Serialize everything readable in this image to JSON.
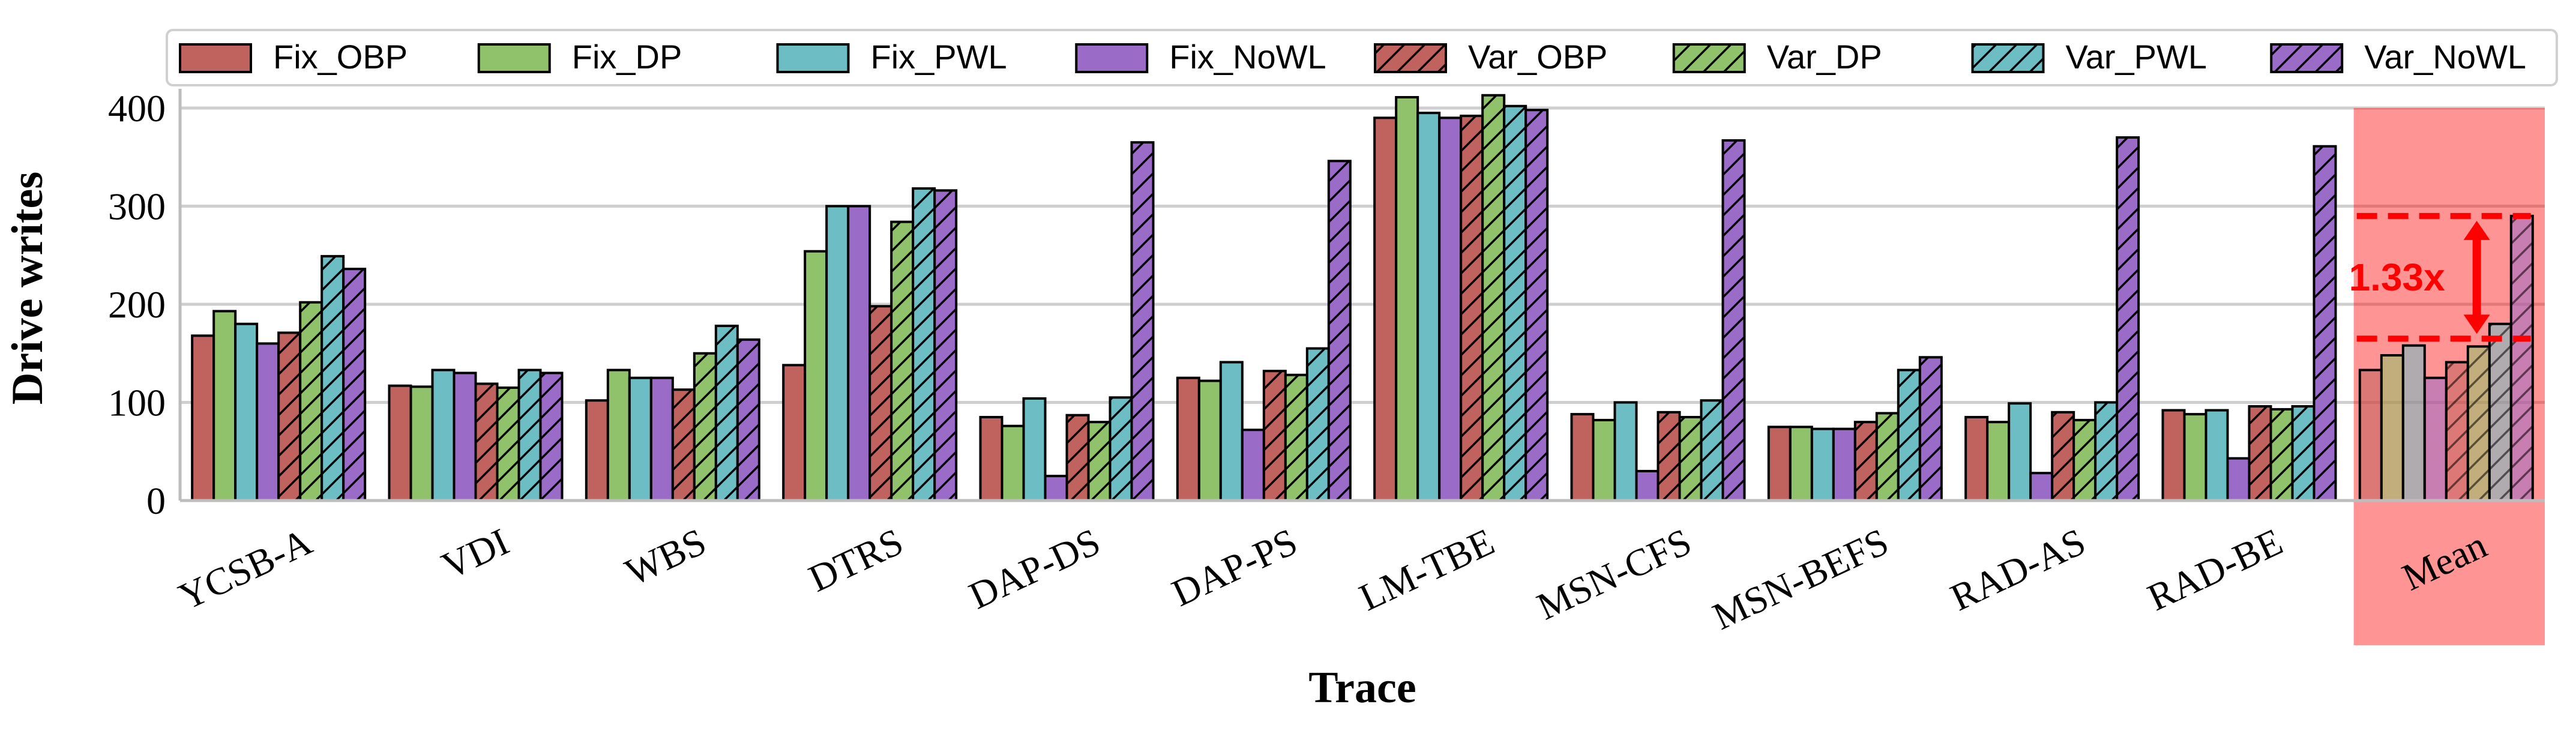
{
  "chart_data": {
    "type": "bar",
    "title": "",
    "xlabel": "Trace",
    "ylabel": "Drive writes",
    "ylim": [
      0,
      400
    ],
    "yticks": [
      0,
      100,
      200,
      300,
      400
    ],
    "grid": true,
    "legend_position": "top",
    "categories": [
      "YCSB-A",
      "VDI",
      "WBS",
      "DTRS",
      "DAP-DS",
      "DAP-PS",
      "LM-TBE",
      "MSN-CFS",
      "MSN-BEFS",
      "RAD-AS",
      "RAD-BE",
      "Mean"
    ],
    "series": [
      {
        "name": "Fix_OBP",
        "color": "#c0635f",
        "hatch": false,
        "values": [
          168,
          117,
          102,
          138,
          85,
          125,
          390,
          88,
          75,
          85,
          92,
          133
        ]
      },
      {
        "name": "Fix_DP",
        "color": "#8fc26a",
        "hatch": false,
        "values": [
          193,
          116,
          133,
          254,
          76,
          122,
          411,
          82,
          75,
          80,
          88,
          148
        ]
      },
      {
        "name": "Fix_PWL",
        "color": "#6dbdc4",
        "hatch": false,
        "values": [
          180,
          133,
          125,
          300,
          104,
          141,
          395,
          100,
          73,
          99,
          92,
          158
        ]
      },
      {
        "name": "Fix_NoWL",
        "color": "#9b6cc7",
        "hatch": false,
        "values": [
          160,
          130,
          125,
          300,
          25,
          72,
          390,
          30,
          73,
          28,
          43,
          125
        ]
      },
      {
        "name": "Var_OBP",
        "color": "#c0635f",
        "hatch": true,
        "values": [
          171,
          119,
          113,
          198,
          87,
          132,
          392,
          90,
          80,
          90,
          96,
          141
        ]
      },
      {
        "name": "Var_DP",
        "color": "#8fc26a",
        "hatch": true,
        "values": [
          202,
          115,
          150,
          284,
          80,
          128,
          413,
          85,
          89,
          82,
          93,
          157
        ]
      },
      {
        "name": "Var_PWL",
        "color": "#6dbdc4",
        "hatch": true,
        "values": [
          249,
          133,
          178,
          318,
          105,
          155,
          402,
          102,
          133,
          100,
          96,
          180
        ]
      },
      {
        "name": "Var_NoWL",
        "color": "#9b6cc7",
        "hatch": true,
        "values": [
          236,
          130,
          164,
          316,
          365,
          346,
          398,
          367,
          146,
          370,
          361,
          290
        ]
      }
    ],
    "highlight": {
      "category": "Mean",
      "color": "#ff0000"
    },
    "annotation": {
      "text": "1.33x",
      "upper_value": 290,
      "lower_value": 165,
      "color": "#ff0000"
    }
  }
}
